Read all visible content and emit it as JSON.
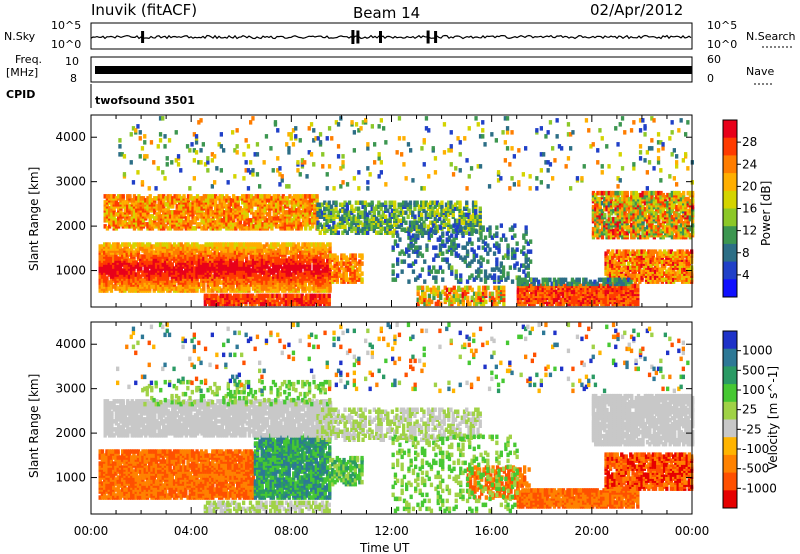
{
  "header": {
    "station": "Inuvik (fitACF)",
    "beam": "Beam 14",
    "date": "02/Apr/2012"
  },
  "noise_panel": {
    "left_label": "N.Sky",
    "left_ticks": [
      "10^5",
      "10^0"
    ],
    "right_ticks": [
      "10^5",
      "10^0"
    ],
    "right_label": "N.Search"
  },
  "freq_panel": {
    "left_label_1": "Freq.",
    "left_label_2": "[MHz]",
    "left_ticks": [
      "10",
      "8"
    ],
    "right_ticks": [
      "60",
      "0"
    ],
    "right_label": "Nave"
  },
  "cpid": {
    "label": "CPID",
    "program": "twofsound 3501"
  },
  "power_colorbar": {
    "title": "Power [dB]",
    "ticks": [
      "28",
      "24",
      "20",
      "16",
      "12",
      "8",
      "4"
    ],
    "colors": [
      "#e8001a",
      "#ff3b00",
      "#ff7d00",
      "#ffaf00",
      "#d4d400",
      "#8cc828",
      "#3c9650",
      "#2c6e86",
      "#2040c8",
      "#1010ff"
    ]
  },
  "velocity_colorbar": {
    "title": "Velocity [m s^-1]",
    "ticks": [
      "1000",
      "500",
      "100",
      "25",
      "-25",
      "-100",
      "-500",
      "-1000"
    ],
    "colors": [
      "#1e32c8",
      "#2d7896",
      "#2a9a64",
      "#46c832",
      "#a0d246",
      "#c8c8c8",
      "#ffb400",
      "#ff8200",
      "#ff5000",
      "#e60000"
    ]
  },
  "chart_data": [
    {
      "type": "heatmap",
      "title": "Power [dB]",
      "xlabel": "",
      "ylabel": "Slant Range [km]",
      "xlim": [
        "00:00",
        "00:00"
      ],
      "ylim": [
        180,
        4500
      ],
      "x_ticks": [
        "00:00",
        "04:00",
        "08:00",
        "12:00",
        "16:00",
        "20:00",
        "00:00"
      ],
      "y_ticks": [
        1000,
        2000,
        3000,
        4000
      ],
      "colorbar_range": [
        0,
        30
      ]
    },
    {
      "type": "heatmap",
      "title": "Velocity [m s^-1]",
      "xlabel": "Time UT",
      "ylabel": "Slant Range [km]",
      "xlim": [
        "00:00",
        "00:00"
      ],
      "ylim": [
        180,
        4500
      ],
      "x_ticks": [
        "00:00",
        "04:00",
        "08:00",
        "12:00",
        "16:00",
        "20:00",
        "00:00"
      ],
      "y_ticks": [
        1000,
        2000,
        3000,
        4000
      ],
      "colorbar_range": [
        -1000,
        1000
      ]
    }
  ]
}
